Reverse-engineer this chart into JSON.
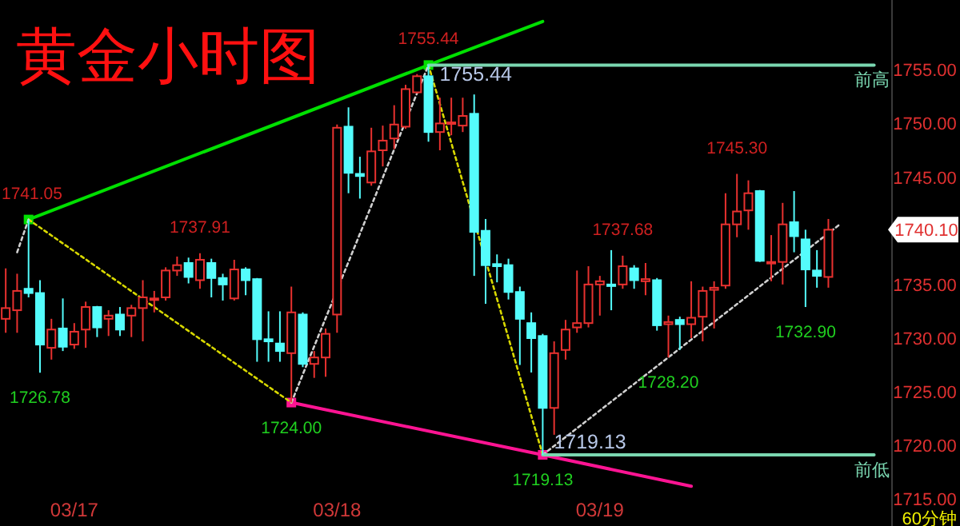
{
  "chart_data": {
    "type": "candlestick",
    "title": "黄金小时图",
    "categories": [
      null,
      null,
      null,
      null,
      null,
      null,
      "03/17",
      null,
      null,
      null,
      null,
      null,
      null,
      null,
      null,
      null,
      null,
      null,
      null,
      null,
      null,
      null,
      null,
      null,
      null,
      null,
      null,
      null,
      null,
      "03/18",
      null,
      null,
      null,
      null,
      null,
      null,
      null,
      null,
      null,
      null,
      null,
      null,
      null,
      null,
      null,
      null,
      null,
      null,
      null,
      null,
      null,
      null,
      "03/19",
      null,
      null,
      null,
      null,
      null,
      null,
      null,
      null,
      null,
      null,
      null,
      null,
      null,
      null,
      null,
      null,
      null,
      null,
      null,
      null,
      null,
      null,
      null,
      null
    ],
    "ohlc": [
      [
        1731.8,
        1736.5,
        1730.5,
        1732.8
      ],
      [
        1732.6,
        1736.0,
        1730.5,
        1734.4
      ],
      [
        1734.6,
        1741.05,
        1733.8,
        1734.2
      ],
      [
        1734.2,
        1735.4,
        1726.78,
        1729.4
      ],
      [
        1729.1,
        1731.8,
        1728.0,
        1730.8
      ],
      [
        1730.9,
        1733.7,
        1728.8,
        1729.2
      ],
      [
        1729.4,
        1731.4,
        1729.0,
        1730.6
      ],
      [
        1730.8,
        1733.4,
        1729.1,
        1732.9
      ],
      [
        1732.9,
        1733.0,
        1730.1,
        1731.0
      ],
      [
        1731.8,
        1732.6,
        1730.2,
        1732.1
      ],
      [
        1732.2,
        1732.9,
        1730.2,
        1730.8
      ],
      [
        1732.1,
        1733.1,
        1730.1,
        1732.8
      ],
      [
        1732.8,
        1735.4,
        1729.7,
        1733.8
      ],
      [
        1733.6,
        1734.4,
        1732.4,
        1733.7
      ],
      [
        1733.8,
        1736.6,
        1733.5,
        1736.3
      ],
      [
        1736.3,
        1737.6,
        1735.8,
        1736.8
      ],
      [
        1737.0,
        1737.5,
        1735.1,
        1735.7
      ],
      [
        1735.4,
        1737.91,
        1734.6,
        1737.3
      ],
      [
        1737.0,
        1737.4,
        1733.8,
        1735.6
      ],
      [
        1735.6,
        1736.0,
        1733.5,
        1735.0
      ],
      [
        1733.7,
        1737.3,
        1733.5,
        1736.4
      ],
      [
        1736.4,
        1736.6,
        1734.0,
        1735.4
      ],
      [
        1735.5,
        1735.6,
        1727.8,
        1729.9
      ],
      [
        1729.9,
        1732.5,
        1727.8,
        1729.7
      ],
      [
        1729.5,
        1732.5,
        1727.8,
        1728.8
      ],
      [
        1728.6,
        1734.8,
        1724.0,
        1732.4
      ],
      [
        1732.2,
        1732.4,
        1727.3,
        1727.6
      ],
      [
        1727.6,
        1728.8,
        1726.3,
        1728.2
      ],
      [
        1728.2,
        1730.9,
        1726.4,
        1730.4
      ],
      [
        1732.2,
        1749.9,
        1730.5,
        1749.6
      ],
      [
        1749.7,
        1751.5,
        1743.5,
        1745.4
      ],
      [
        1745.3,
        1746.9,
        1743.0,
        1745.1
      ],
      [
        1744.5,
        1749.6,
        1744.2,
        1747.4
      ],
      [
        1747.5,
        1749.8,
        1746.0,
        1748.4
      ],
      [
        1748.6,
        1751.7,
        1747.6,
        1749.9
      ],
      [
        1749.7,
        1753.6,
        1749.5,
        1753.2
      ],
      [
        1752.9,
        1754.6,
        1752.8,
        1754.4
      ],
      [
        1754.4,
        1755.44,
        1748.3,
        1749.2
      ],
      [
        1749.2,
        1752.4,
        1747.5,
        1750.0
      ],
      [
        1750.0,
        1752.4,
        1748.9,
        1750.1
      ],
      [
        1749.8,
        1752.4,
        1749.2,
        1750.7
      ],
      [
        1750.9,
        1752.7,
        1735.8,
        1739.9
      ],
      [
        1740.0,
        1741.1,
        1733.2,
        1736.8
      ],
      [
        1736.9,
        1737.8,
        1735.2,
        1736.7
      ],
      [
        1736.8,
        1737.4,
        1733.6,
        1734.3
      ],
      [
        1734.3,
        1734.8,
        1727.5,
        1731.8
      ],
      [
        1731.4,
        1732.4,
        1726.8,
        1730.0
      ],
      [
        1730.2,
        1730.4,
        1719.13,
        1723.5
      ],
      [
        1723.5,
        1729.7,
        1721.0,
        1728.6
      ],
      [
        1728.9,
        1731.7,
        1728.0,
        1730.8
      ],
      [
        1731.0,
        1736.3,
        1730.5,
        1731.4
      ],
      [
        1731.4,
        1736.7,
        1731.0,
        1735.0
      ],
      [
        1735.0,
        1735.8,
        1732.1,
        1735.3
      ],
      [
        1735.0,
        1738.2,
        1732.6,
        1734.9
      ],
      [
        1735.0,
        1737.68,
        1734.6,
        1736.7
      ],
      [
        1736.5,
        1736.8,
        1734.6,
        1735.4
      ],
      [
        1735.3,
        1737.0,
        1734.0,
        1735.5
      ],
      [
        1735.4,
        1735.6,
        1730.7,
        1731.2
      ],
      [
        1731.3,
        1732.1,
        1728.2,
        1731.5
      ],
      [
        1731.7,
        1732.0,
        1728.9,
        1731.3
      ],
      [
        1731.3,
        1735.3,
        1730.0,
        1731.9
      ],
      [
        1732.0,
        1734.8,
        1729.7,
        1734.4
      ],
      [
        1734.5,
        1735.3,
        1730.9,
        1734.7
      ],
      [
        1734.9,
        1743.5,
        1734.6,
        1740.6
      ],
      [
        1740.6,
        1745.3,
        1739.4,
        1741.8
      ],
      [
        1741.9,
        1744.7,
        1740.1,
        1743.5
      ],
      [
        1743.7,
        1743.8,
        1737.1,
        1737.2
      ],
      [
        1737.0,
        1739.6,
        1735.3,
        1737.1
      ],
      [
        1737.1,
        1742.6,
        1735.0,
        1740.6
      ],
      [
        1740.8,
        1743.7,
        1738.0,
        1739.5
      ],
      [
        1739.2,
        1740.1,
        1732.9,
        1736.4
      ],
      [
        1736.3,
        1738.2,
        1734.7,
        1735.8
      ],
      [
        1735.7,
        1741.1,
        1734.7,
        1740.1
      ],
      null,
      null,
      null,
      null
    ],
    "colors": [
      "#e8312f",
      "#e8312f",
      "#54fcfc",
      "#54fcfc",
      "#e8312f",
      "#54fcfc",
      "#e8312f",
      "#e8312f",
      "#54fcfc",
      "#e8312f",
      "#54fcfc",
      "#e8312f",
      "#e8312f",
      "#e8312f",
      "#e8312f",
      "#e8312f",
      "#54fcfc",
      "#e8312f",
      "#54fcfc",
      "#54fcfc",
      "#e8312f",
      "#54fcfc",
      "#54fcfc",
      "#54fcfc",
      "#54fcfc",
      "#e8312f",
      "#54fcfc",
      "#e8312f",
      "#e8312f",
      "#e8312f",
      "#54fcfc",
      "#54fcfc",
      "#e8312f",
      "#e8312f",
      "#e8312f",
      "#e8312f",
      "#e8312f",
      "#54fcfc",
      "#e8312f",
      "#e8312f",
      "#e8312f",
      "#54fcfc",
      "#54fcfc",
      "#54fcfc",
      "#54fcfc",
      "#54fcfc",
      "#54fcfc",
      "#54fcfc",
      "#e8312f",
      "#e8312f",
      "#e8312f",
      "#e8312f",
      "#e8312f",
      "#54fcfc",
      "#e8312f",
      "#54fcfc",
      "#e8312f",
      "#54fcfc",
      "#e8312f",
      "#54fcfc",
      "#e8312f",
      "#e8312f",
      "#e8312f",
      "#e8312f",
      "#e8312f",
      "#e8312f",
      "#54fcfc",
      "#e8312f",
      "#e8312f",
      "#54fcfc",
      "#54fcfc",
      "#54fcfc",
      "#e8312f",
      null,
      null,
      null,
      null
    ],
    "series": [
      {
        "type": "line",
        "color": "#00e000",
        "marker": "square",
        "values": [
          null,
          null,
          1741.05,
          null,
          null,
          null,
          null,
          null,
          null,
          null,
          null,
          null,
          null,
          null,
          null,
          null,
          null,
          null,
          null,
          null,
          null,
          null,
          null,
          null,
          null,
          null,
          null,
          null,
          null,
          null,
          null,
          null,
          null,
          null,
          null,
          null,
          null,
          1755.44,
          null,
          null,
          null,
          null,
          null,
          null,
          null,
          null,
          null,
          null,
          null,
          null,
          null,
          null,
          null,
          null,
          null,
          null,
          null,
          null,
          null,
          null,
          null,
          null,
          null,
          null,
          null,
          null,
          null,
          null,
          null,
          null,
          null,
          null,
          null,
          null,
          null,
          null,
          null
        ]
      },
      {
        "type": "line",
        "color": "#00e000",
        "values": [
          null,
          null,
          null,
          null,
          null,
          null,
          null,
          null,
          null,
          null,
          null,
          null,
          null,
          null,
          null,
          null,
          null,
          null,
          null,
          null,
          null,
          null,
          null,
          null,
          null,
          null,
          null,
          null,
          null,
          null,
          null,
          null,
          null,
          null,
          null,
          null,
          null,
          1755.44,
          null,
          null,
          null,
          null,
          null,
          null,
          null,
          null,
          null,
          1759.5,
          null,
          null,
          null,
          null,
          null,
          null,
          null,
          null,
          null,
          null,
          null,
          null,
          null,
          null,
          null,
          null,
          null,
          null,
          null,
          null,
          null,
          null,
          null,
          null,
          null,
          null,
          null,
          null,
          null
        ]
      },
      {
        "type": "line",
        "color": "#ff1493",
        "marker": "square",
        "values": [
          null,
          null,
          null,
          null,
          null,
          null,
          null,
          null,
          null,
          null,
          null,
          null,
          null,
          null,
          null,
          null,
          null,
          null,
          null,
          null,
          null,
          null,
          null,
          null,
          null,
          1724.0,
          null,
          null,
          null,
          null,
          null,
          null,
          null,
          null,
          null,
          null,
          null,
          null,
          null,
          null,
          null,
          null,
          null,
          null,
          null,
          null,
          null,
          1719.13,
          null,
          null,
          null,
          null,
          null,
          null,
          null,
          null,
          null,
          null,
          null,
          null,
          null,
          null,
          null,
          null,
          null,
          null,
          null,
          null,
          null,
          null,
          null,
          null,
          null,
          null,
          null,
          null,
          null
        ]
      },
      {
        "type": "line",
        "color": "#ff1493",
        "values": [
          null,
          null,
          null,
          null,
          null,
          null,
          null,
          null,
          null,
          null,
          null,
          null,
          null,
          null,
          null,
          null,
          null,
          null,
          null,
          null,
          null,
          null,
          null,
          null,
          null,
          null,
          null,
          null,
          null,
          null,
          null,
          null,
          null,
          null,
          null,
          null,
          null,
          null,
          null,
          null,
          null,
          null,
          null,
          null,
          null,
          null,
          null,
          1719.13,
          null,
          null,
          null,
          null,
          null,
          null,
          null,
          null,
          null,
          null,
          null,
          null,
          1716.2,
          null,
          null,
          null,
          null,
          null,
          null,
          null,
          null,
          null,
          null,
          null,
          null,
          null,
          null,
          null,
          null
        ]
      },
      {
        "type": "line",
        "color": "#d8d800",
        "line_style": "dotted",
        "values": [
          null,
          null,
          1741.05,
          null,
          null,
          null,
          null,
          null,
          null,
          null,
          null,
          null,
          null,
          null,
          null,
          null,
          null,
          null,
          null,
          null,
          null,
          null,
          null,
          null,
          null,
          1724.0,
          null,
          null,
          null,
          null,
          null,
          null,
          null,
          null,
          null,
          null,
          null,
          null,
          null,
          null,
          null,
          null,
          null,
          null,
          null,
          null,
          null,
          null,
          null,
          null,
          null,
          null,
          null,
          null,
          null,
          null,
          null,
          null,
          null,
          null,
          null,
          null,
          null,
          null,
          null,
          null,
          null,
          null,
          null,
          null,
          null,
          null,
          null,
          null,
          null,
          null,
          null
        ]
      },
      {
        "type": "line",
        "color": "#d8d800",
        "line_style": "dotted",
        "values": [
          null,
          null,
          null,
          null,
          null,
          null,
          null,
          null,
          null,
          null,
          null,
          null,
          null,
          null,
          null,
          null,
          null,
          null,
          null,
          null,
          null,
          null,
          null,
          null,
          null,
          null,
          null,
          null,
          null,
          null,
          null,
          null,
          null,
          null,
          null,
          null,
          null,
          1755.44,
          null,
          null,
          null,
          null,
          null,
          null,
          null,
          null,
          null,
          1719.13,
          null,
          null,
          null,
          null,
          null,
          null,
          null,
          null,
          null,
          null,
          null,
          null,
          null,
          null,
          null,
          null,
          null,
          null,
          null,
          null,
          null,
          null,
          null,
          null,
          null,
          null,
          null,
          null,
          null
        ]
      },
      {
        "type": "line",
        "color": "#d0d0d0",
        "line_style": "dotted",
        "values": [
          null,
          1738.0,
          1741.05,
          null,
          null,
          null,
          null,
          null,
          null,
          null,
          null,
          null,
          null,
          null,
          null,
          null,
          null,
          null,
          null,
          null,
          null,
          null,
          null,
          null,
          null,
          null,
          null,
          null,
          null,
          null,
          null,
          null,
          null,
          null,
          null,
          null,
          null,
          null,
          null,
          null,
          null,
          null,
          null,
          null,
          null,
          null,
          null,
          null,
          null,
          null,
          null,
          null,
          null,
          null,
          null,
          null,
          null,
          null,
          null,
          null,
          null,
          null,
          null,
          null,
          null,
          null,
          null,
          null,
          null,
          null,
          null,
          null,
          null,
          null,
          null,
          null,
          null
        ]
      },
      {
        "type": "line",
        "color": "#d0d0d0",
        "line_style": "dotted",
        "values": [
          null,
          null,
          null,
          null,
          null,
          null,
          null,
          null,
          null,
          null,
          null,
          null,
          null,
          null,
          null,
          null,
          null,
          null,
          null,
          null,
          null,
          null,
          null,
          null,
          null,
          1724.0,
          null,
          null,
          null,
          null,
          null,
          null,
          null,
          null,
          null,
          null,
          null,
          1755.44,
          null,
          null,
          null,
          null,
          null,
          null,
          null,
          null,
          null,
          null,
          null,
          null,
          null,
          null,
          null,
          null,
          null,
          null,
          null,
          null,
          null,
          null,
          null,
          null,
          null,
          null,
          null,
          null,
          null,
          null,
          null,
          null,
          null,
          null,
          null,
          null,
          null,
          null,
          null
        ]
      },
      {
        "type": "line",
        "color": "#d0d0d0",
        "line_style": "dotted",
        "values": [
          null,
          null,
          null,
          null,
          null,
          null,
          null,
          null,
          null,
          null,
          null,
          null,
          null,
          null,
          null,
          null,
          null,
          null,
          null,
          null,
          null,
          null,
          null,
          null,
          null,
          null,
          null,
          null,
          null,
          null,
          null,
          null,
          null,
          null,
          null,
          null,
          null,
          null,
          null,
          null,
          null,
          null,
          null,
          null,
          null,
          null,
          null,
          1719.13,
          null,
          null,
          null,
          null,
          null,
          null,
          null,
          null,
          null,
          null,
          null,
          null,
          null,
          null,
          null,
          null,
          null,
          null,
          null,
          null,
          null,
          null,
          null,
          null,
          null,
          1740.6,
          null,
          null,
          null
        ]
      },
      {
        "type": "line",
        "color": "#7ad6b0",
        "values": [
          null,
          null,
          null,
          null,
          null,
          null,
          null,
          null,
          null,
          null,
          null,
          null,
          null,
          null,
          null,
          null,
          null,
          null,
          null,
          null,
          null,
          null,
          null,
          null,
          null,
          null,
          null,
          null,
          null,
          null,
          null,
          null,
          null,
          null,
          null,
          null,
          null,
          1755.44,
          null,
          null,
          null,
          null,
          null,
          null,
          null,
          null,
          null,
          null,
          null,
          null,
          null,
          null,
          null,
          null,
          null,
          null,
          null,
          null,
          null,
          null,
          null,
          null,
          null,
          null,
          null,
          null,
          null,
          null,
          null,
          null,
          null,
          null,
          null,
          null,
          null,
          null,
          1755.44
        ]
      },
      {
        "type": "line",
        "color": "#7ad6b0",
        "values": [
          null,
          null,
          null,
          null,
          null,
          null,
          null,
          null,
          null,
          null,
          null,
          null,
          null,
          null,
          null,
          null,
          null,
          null,
          null,
          null,
          null,
          null,
          null,
          null,
          null,
          null,
          null,
          null,
          null,
          null,
          null,
          null,
          null,
          null,
          null,
          null,
          null,
          null,
          null,
          null,
          null,
          null,
          null,
          null,
          null,
          null,
          null,
          1719.13,
          null,
          null,
          null,
          null,
          null,
          null,
          null,
          null,
          null,
          null,
          null,
          null,
          null,
          null,
          null,
          null,
          null,
          null,
          null,
          null,
          null,
          null,
          null,
          null,
          null,
          null,
          null,
          null,
          1719.13
        ]
      }
    ],
    "annotations": [
      "1755.44",
      {
        "text": "1741.05",
        "y": 1741.05
      },
      {
        "text": "1737.91",
        "y": 1737.91
      },
      {
        "text": "1737.68",
        "y": 1737.68
      },
      {
        "text": "1745.30",
        "y": 1745.3
      },
      {
        "text": "1726.78",
        "y": 1726.78
      },
      {
        "text": "1724.00",
        "y": 1724.0
      },
      "1719.13",
      {
        "text": "1728.20",
        "y": 1728.2
      },
      {
        "text": "1732.90",
        "y": 1732.9
      },
      {
        "text": "1755.44",
        "y": 1755.44
      },
      {
        "text": "1719.13",
        "y": 1719.13
      },
      "前高",
      "前低",
      "1740.10",
      "60分钟"
    ],
    "ylim": [
      1712.5,
      1761.5
    ],
    "yticks": [
      {
        "value": 1715,
        "label": "1715.00"
      },
      {
        "value": 1720,
        "label": "1720.00"
      },
      {
        "value": 1725,
        "label": "1725.00"
      },
      {
        "value": 1730,
        "label": "1730.00"
      },
      {
        "value": 1735,
        "label": "1735.00"
      },
      {
        "value": 1745,
        "label": "1745.00"
      },
      {
        "value": 1750,
        "label": "1750.00"
      },
      {
        "value": 1755,
        "label": "1755.00"
      }
    ]
  }
}
